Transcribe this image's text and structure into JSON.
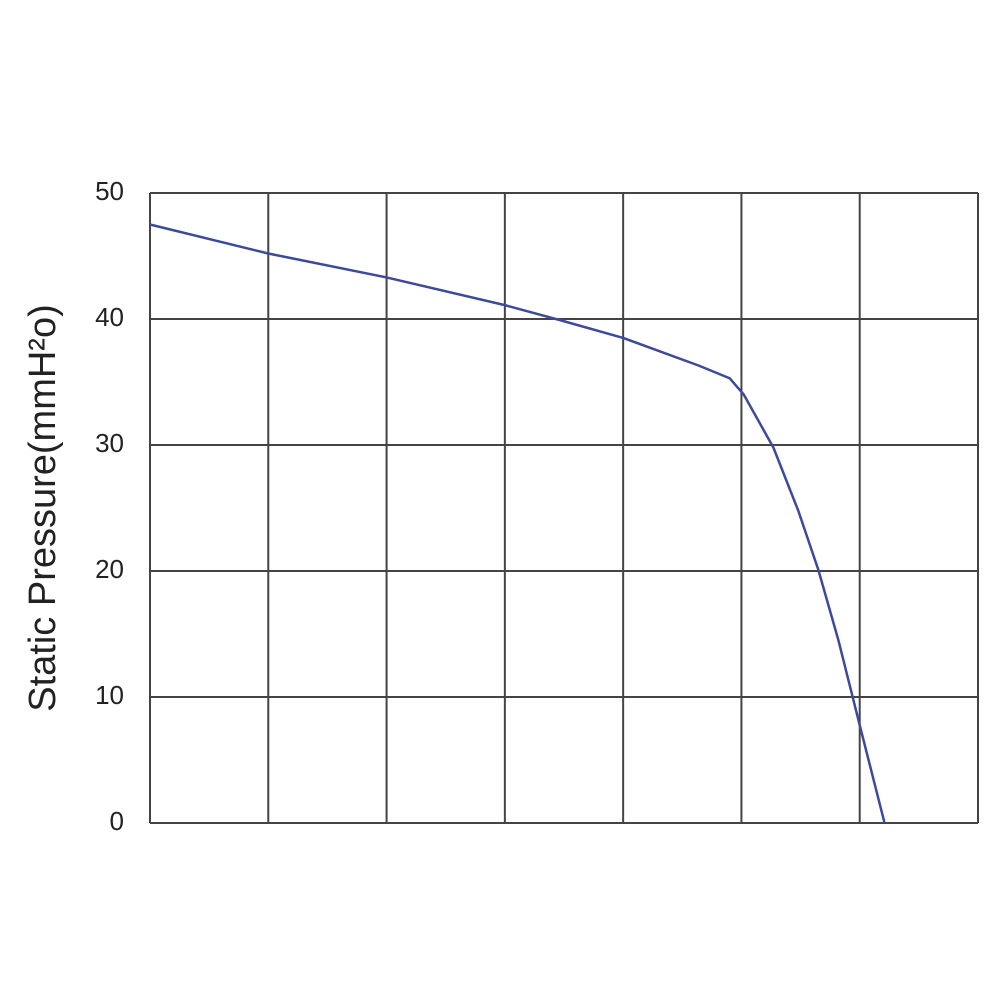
{
  "chart_data": {
    "type": "line",
    "y_label": "Static Pressure(mmH²o)",
    "x": [
      0,
      1,
      2,
      3,
      3.47,
      4,
      4.64,
      4.9,
      5.02,
      5.27,
      5.48,
      5.65,
      5.82,
      6.01,
      6.21
    ],
    "series": [
      {
        "color": "#3d4a9a",
        "values": [
          47.5,
          45.2,
          43.3,
          41.1,
          39.9,
          38.5,
          36.3,
          35.3,
          34.0,
          29.8,
          24.8,
          20.1,
          14.5,
          7.4,
          0
        ]
      }
    ],
    "xlim": [
      0,
      7
    ],
    "xticks": [
      0,
      1,
      2,
      3,
      4,
      5,
      6,
      7
    ],
    "show_xtick_labels": false,
    "ylim": [
      0,
      50
    ],
    "yticks": [
      0,
      10,
      20,
      30,
      40,
      50
    ],
    "grid": true
  }
}
